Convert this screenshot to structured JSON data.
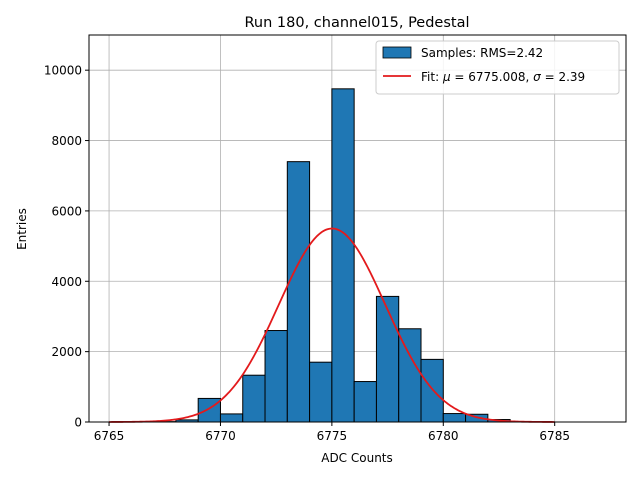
{
  "chart_data": {
    "type": "bar",
    "title": "Run 180, channel015, Pedestal",
    "xlabel": "ADC Counts",
    "ylabel": "Entries",
    "xlim": [
      6764.1,
      6788.2
    ],
    "ylim": [
      0,
      11000
    ],
    "grid": true,
    "legend_position": "top-right",
    "x_ticks": [
      6765,
      6770,
      6775,
      6780,
      6785
    ],
    "y_ticks": [
      0,
      2000,
      4000,
      6000,
      8000,
      10000
    ],
    "bin_width": 1,
    "bins": [
      {
        "left": 6766,
        "value": 5
      },
      {
        "left": 6767,
        "value": 10
      },
      {
        "left": 6768,
        "value": 60
      },
      {
        "left": 6769,
        "value": 670
      },
      {
        "left": 6770,
        "value": 230
      },
      {
        "left": 6771,
        "value": 1330
      },
      {
        "left": 6772,
        "value": 2600
      },
      {
        "left": 6773,
        "value": 7400
      },
      {
        "left": 6774,
        "value": 1700
      },
      {
        "left": 6775,
        "value": 9470
      },
      {
        "left": 6776,
        "value": 1150
      },
      {
        "left": 6777,
        "value": 3570
      },
      {
        "left": 6778,
        "value": 2650
      },
      {
        "left": 6779,
        "value": 1780
      },
      {
        "left": 6780,
        "value": 240
      },
      {
        "left": 6781,
        "value": 220
      },
      {
        "left": 6782,
        "value": 70
      },
      {
        "left": 6783,
        "value": 10
      }
    ],
    "fit": {
      "mu": 6775.008,
      "sigma": 2.39,
      "amplitude": 5500,
      "x_range": [
        6765,
        6785
      ]
    },
    "legend": {
      "samples_label": "Samples: RMS=2.42",
      "fit_prefix": "Fit: ",
      "mu_symbol": "μ",
      "mu_text": " = 6775.008, ",
      "sigma_symbol": "σ",
      "sigma_text": " = 2.39"
    },
    "colors": {
      "bar_fill": "#1f77b4",
      "bar_edge": "#000000",
      "fit_line": "#e31a1c",
      "grid": "#b0b0b0"
    }
  }
}
